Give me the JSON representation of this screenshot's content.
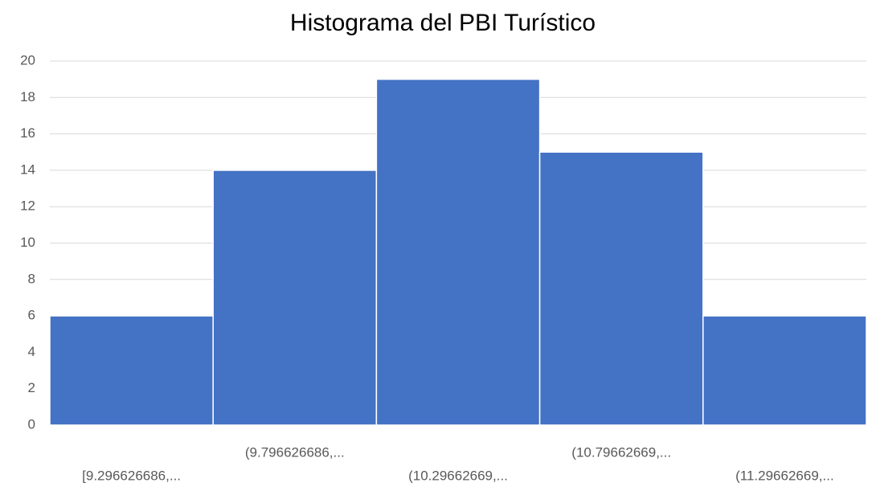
{
  "chart_data": {
    "type": "bar",
    "title": "Histograma del PBI Turístico",
    "categories": [
      "[9.296626686,...",
      "(9.796626686,...",
      "(10.29662669,...",
      "(10.79662669,...",
      "(11.29662669,..."
    ],
    "values": [
      6,
      14,
      19,
      15,
      6
    ],
    "color": "#4472c4",
    "ylim": [
      0,
      20
    ],
    "yticks": [
      0,
      2,
      4,
      6,
      8,
      10,
      12,
      14,
      16,
      18,
      20
    ],
    "grid": true
  }
}
